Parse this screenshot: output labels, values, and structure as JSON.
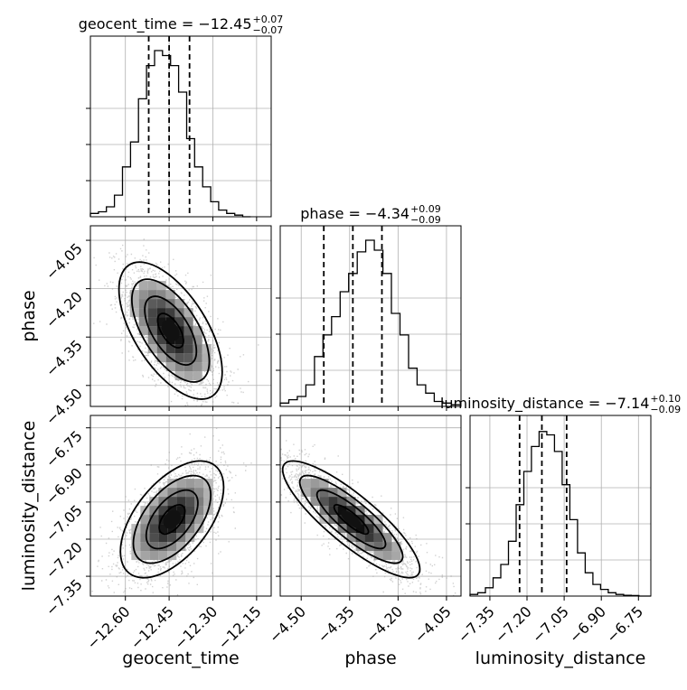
{
  "chart_data": {
    "type": "corner",
    "parameters": [
      "geocent_time",
      "phase",
      "luminosity_distance"
    ],
    "axis_labels": {
      "geocent_time": "geocent_time",
      "phase": "phase",
      "luminosity_distance": "luminosity_distance"
    },
    "ranges": {
      "geocent_time": [
        -12.72,
        -12.1
      ],
      "phase": [
        -4.565,
        -4.005
      ],
      "luminosity_distance": [
        -7.43,
        -6.7
      ]
    },
    "ticks": {
      "geocent_time": [
        -12.6,
        -12.45,
        -12.3,
        -12.15
      ],
      "phase": [
        -4.5,
        -4.35,
        -4.2,
        -4.05
      ],
      "luminosity_distance": [
        -7.35,
        -7.2,
        -7.05,
        -6.9,
        -6.75
      ]
    },
    "tick_labels": {
      "geocent_time": [
        "−12.60",
        "−12.45",
        "−12.30",
        "−12.15"
      ],
      "phase": [
        "−4.50",
        "−4.35",
        "−4.20",
        "−4.05"
      ],
      "luminosity_distance": [
        "−7.35",
        "−7.20",
        "−7.05",
        "−6.90",
        "−6.75"
      ]
    },
    "y_tick_labels_phase": [
      "−4.05",
      "−4.20",
      "−4.35",
      "−4.50"
    ],
    "y_tick_values_phase": [
      -4.05,
      -4.2,
      -4.35,
      -4.5
    ],
    "y_tick_labels_lumdist": [
      "−6.75",
      "−6.90",
      "−7.05",
      "−7.20",
      "−7.35"
    ],
    "y_tick_values_lumdist": [
      -6.75,
      -6.9,
      -7.05,
      -7.2,
      -7.35
    ],
    "titles": {
      "geocent_time": {
        "name": "geocent_time",
        "median": "−12.45",
        "plus": "+0.07",
        "minus": "−0.07"
      },
      "phase": {
        "name": "phase",
        "median": "−4.34",
        "plus": "+0.09",
        "minus": "−0.09"
      },
      "luminosity_distance": {
        "name": "luminosity_distance",
        "median": "−7.14",
        "plus": "+0.10",
        "minus": "−0.09"
      }
    },
    "quantiles": {
      "geocent_time": [
        -12.52,
        -12.45,
        -12.38
      ],
      "phase": [
        -4.43,
        -4.34,
        -4.25
      ],
      "luminosity_distance": [
        -7.23,
        -7.14,
        -7.04
      ]
    },
    "histograms": {
      "geocent_time": {
        "edges_start": -12.72,
        "bin_width": 0.0275,
        "counts": [
          0.02,
          0.03,
          0.06,
          0.13,
          0.3,
          0.45,
          0.71,
          0.91,
          1.0,
          0.97,
          0.91,
          0.75,
          0.47,
          0.3,
          0.18,
          0.09,
          0.04,
          0.02,
          0.01,
          0.0
        ]
      },
      "phase": {
        "edges_start": -4.565,
        "bin_width": 0.0265,
        "counts": [
          0.02,
          0.04,
          0.06,
          0.13,
          0.3,
          0.43,
          0.54,
          0.69,
          0.8,
          0.93,
          1.0,
          0.94,
          0.8,
          0.56,
          0.43,
          0.23,
          0.13,
          0.08,
          0.03,
          0.02,
          0.01
        ]
      },
      "luminosity_distance": {
        "edges_start": -7.43,
        "bin_width": 0.031,
        "counts": [
          0.01,
          0.02,
          0.05,
          0.11,
          0.19,
          0.33,
          0.55,
          0.75,
          0.9,
          0.99,
          0.97,
          0.87,
          0.67,
          0.46,
          0.26,
          0.14,
          0.07,
          0.04,
          0.02,
          0.01,
          0.005,
          0.003,
          0.0,
          0.0
        ]
      }
    },
    "pairs": [
      {
        "x": "geocent_time",
        "y": "phase",
        "center": [
          -12.445,
          -4.33
        ],
        "sd": [
          0.075,
          0.09
        ],
        "rho": -0.6
      },
      {
        "x": "geocent_time",
        "y": "luminosity_distance",
        "center": [
          -12.44,
          -7.12
        ],
        "sd": [
          0.075,
          0.1
        ],
        "rho": 0.55
      },
      {
        "x": "phase",
        "y": "luminosity_distance",
        "center": [
          -4.345,
          -7.12
        ],
        "sd": [
          0.09,
          0.1
        ],
        "rho": -0.85
      }
    ],
    "grid": true
  }
}
